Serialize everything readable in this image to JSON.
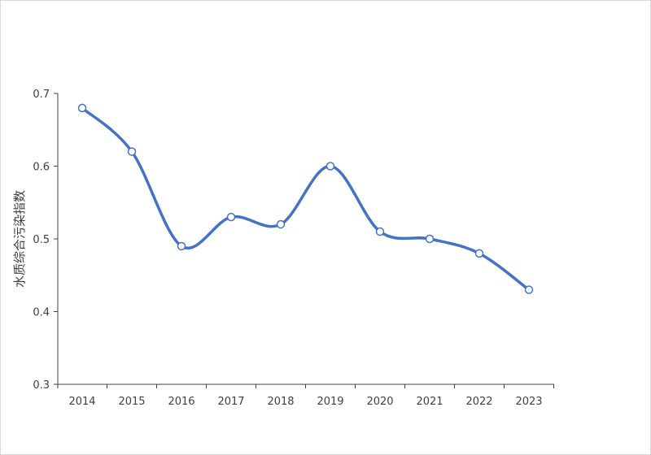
{
  "chart_data": {
    "type": "line",
    "ylabel": "水质综合污染指数",
    "xlabel": "",
    "title": "",
    "categories": [
      "2014",
      "2015",
      "2016",
      "2017",
      "2018",
      "2019",
      "2020",
      "2021",
      "2022",
      "2023"
    ],
    "series": [
      {
        "values": [
          0.68,
          0.62,
          0.49,
          0.53,
          0.52,
          0.6,
          0.51,
          0.5,
          0.48,
          0.43
        ]
      }
    ],
    "ylim": [
      0.3,
      0.7
    ],
    "yticks": [
      "0.3",
      "0.4",
      "0.5",
      "0.6",
      "0.7"
    ],
    "grid": false,
    "smooth": true,
    "line_color": "#4472C4",
    "marker_fill": "#ffffff"
  }
}
